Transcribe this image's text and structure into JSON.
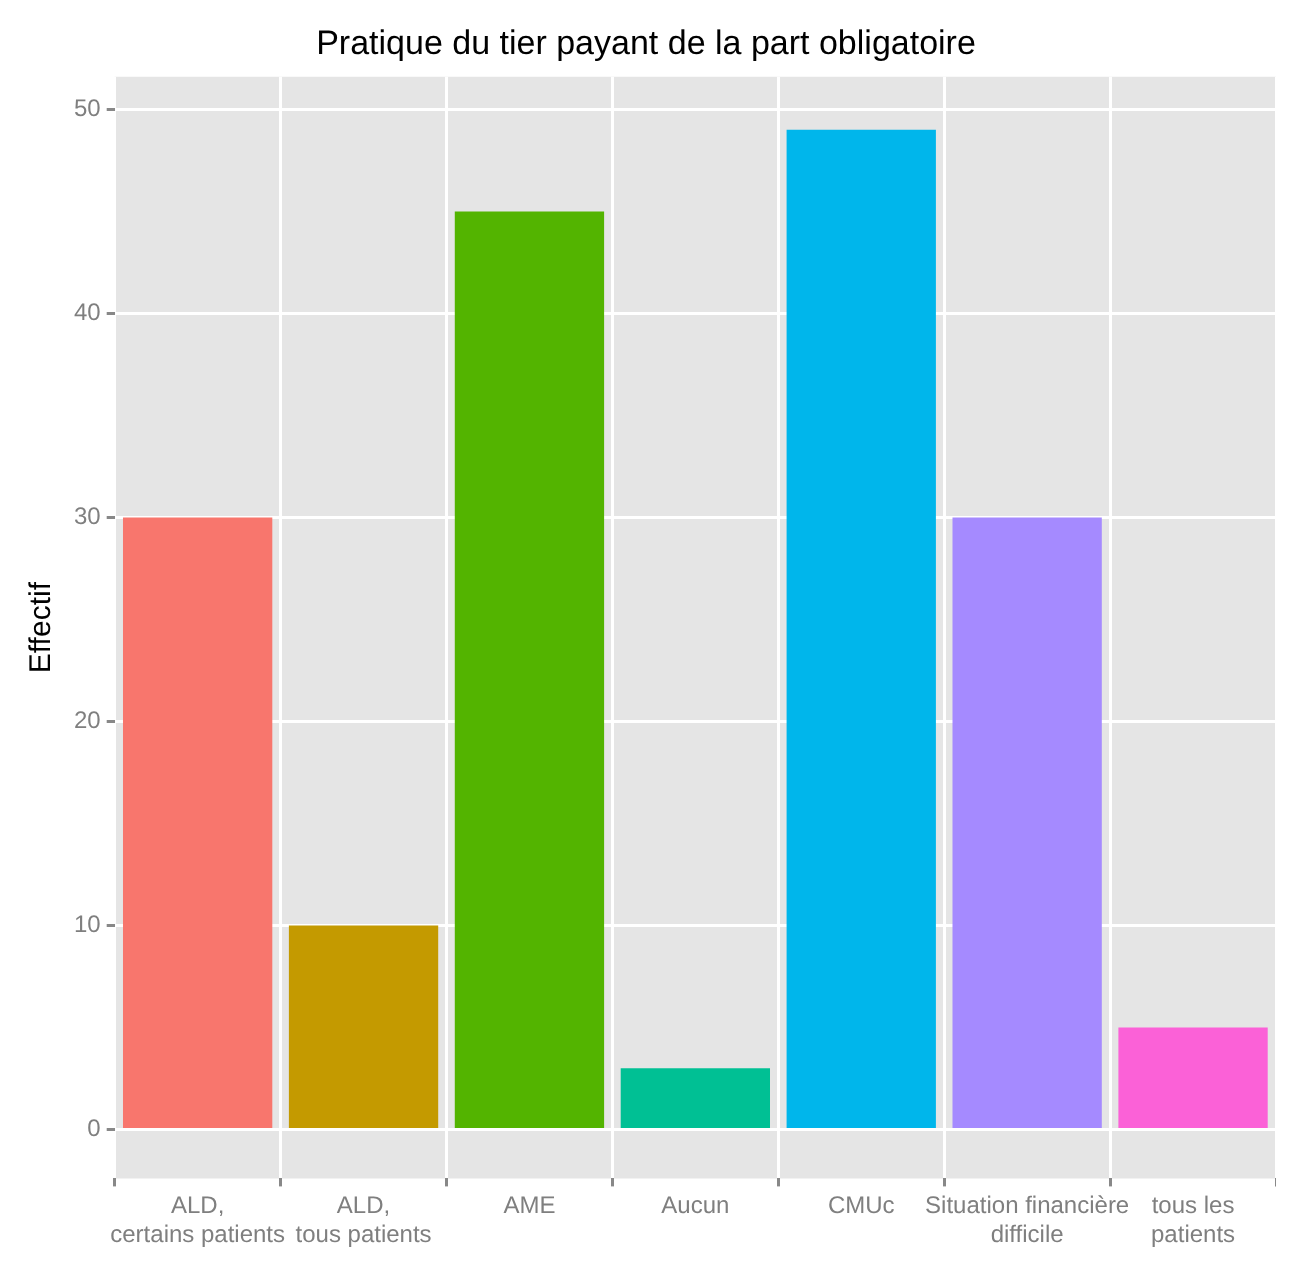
{
  "chart_data": {
    "type": "bar",
    "title": "Pratique du tier payant de la part obligatoire",
    "ylabel": "Effectif",
    "categories": [
      "ALD,\ncertains patients",
      "ALD,\ntous patients",
      "AME",
      "Aucun",
      "CMUc",
      "Situation financière\ndifficile",
      "tous les\npatients"
    ],
    "values": [
      30,
      10,
      45,
      3,
      49,
      30,
      5
    ],
    "colors": [
      "#f8766d",
      "#c49a00",
      "#53b400",
      "#00c094",
      "#00b6eb",
      "#a58aff",
      "#fb61d7"
    ],
    "ylim": [
      -2.4,
      51.6
    ],
    "yticks": [
      0,
      10,
      20,
      30,
      40,
      50
    ],
    "grid": true,
    "legend": false
  }
}
